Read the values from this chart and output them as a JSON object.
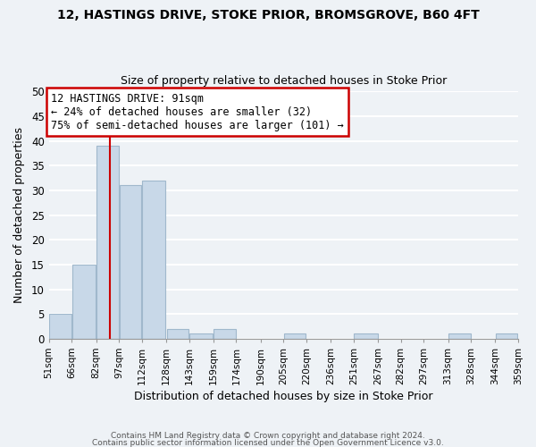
{
  "title": "12, HASTINGS DRIVE, STOKE PRIOR, BROMSGROVE, B60 4FT",
  "subtitle": "Size of property relative to detached houses in Stoke Prior",
  "xlabel": "Distribution of detached houses by size in Stoke Prior",
  "ylabel": "Number of detached properties",
  "bar_color": "#c8d8e8",
  "bar_edgecolor": "#a0b8cc",
  "vline_x": 91,
  "vline_color": "#cc0000",
  "ylim": [
    0,
    50
  ],
  "yticks": [
    0,
    5,
    10,
    15,
    20,
    25,
    30,
    35,
    40,
    45,
    50
  ],
  "bins": [
    51,
    66,
    82,
    97,
    112,
    128,
    143,
    159,
    174,
    190,
    205,
    220,
    236,
    251,
    267,
    282,
    297,
    313,
    328,
    344,
    359
  ],
  "bin_labels": [
    "51sqm",
    "66sqm",
    "82sqm",
    "97sqm",
    "112sqm",
    "128sqm",
    "143sqm",
    "159sqm",
    "174sqm",
    "190sqm",
    "205sqm",
    "220sqm",
    "236sqm",
    "251sqm",
    "267sqm",
    "282sqm",
    "297sqm",
    "313sqm",
    "328sqm",
    "344sqm",
    "359sqm"
  ],
  "bar_heights": [
    5,
    15,
    39,
    31,
    32,
    2,
    1,
    2,
    0,
    0,
    1,
    0,
    0,
    1,
    0,
    0,
    0,
    1,
    0,
    1
  ],
  "annotation_title": "12 HASTINGS DRIVE: 91sqm",
  "annotation_line1": "← 24% of detached houses are smaller (32)",
  "annotation_line2": "75% of semi-detached houses are larger (101) →",
  "annotation_box_edgecolor": "#cc0000",
  "footer_line1": "Contains HM Land Registry data © Crown copyright and database right 2024.",
  "footer_line2": "Contains public sector information licensed under the Open Government Licence v3.0.",
  "background_color": "#eef2f6",
  "grid_color": "#ffffff"
}
